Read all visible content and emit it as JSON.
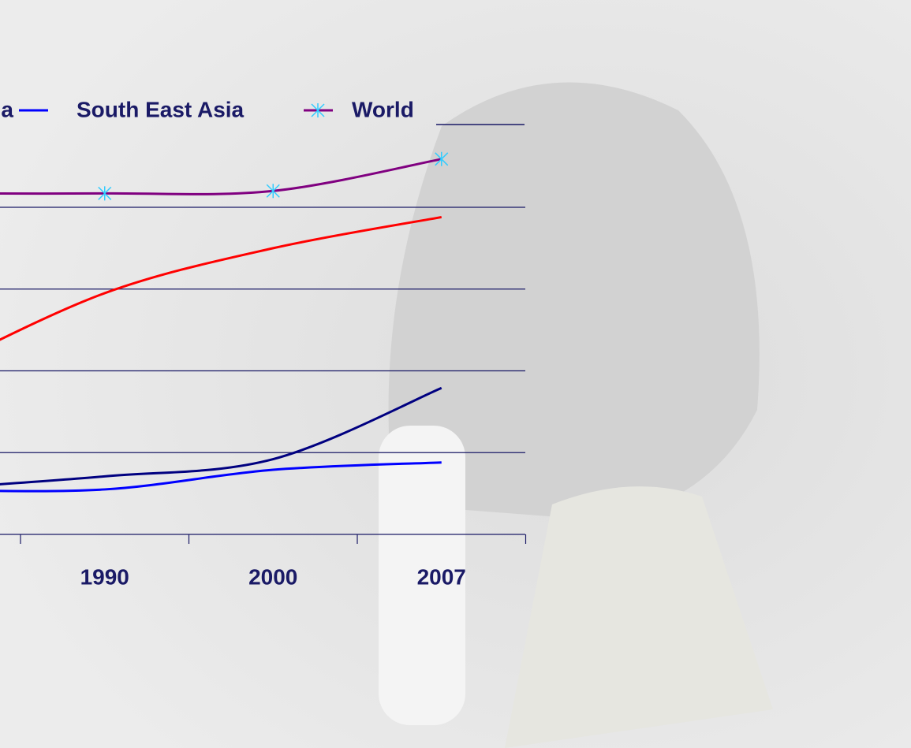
{
  "chart_data": {
    "type": "line",
    "categories": [
      null,
      "1990",
      "2000",
      "2007"
    ],
    "series": [
      {
        "color": "#ff0000",
        "values": [
          2.0,
          2.95,
          3.5,
          3.88
        ]
      },
      {
        "name": "ia",
        "color": "#000080",
        "values": [
          0.56,
          0.71,
          0.92,
          1.79
        ]
      },
      {
        "name": "South East Asia",
        "color": "#0000ff",
        "values": [
          0.54,
          0.55,
          0.79,
          0.88
        ]
      },
      {
        "name": "World",
        "color": "#800080",
        "marker": "x",
        "marker_color": "#33ccff",
        "values": [
          4.17,
          4.17,
          4.2,
          4.59
        ]
      }
    ],
    "ylim": [
      0,
      5
    ],
    "yticks": [
      0,
      1,
      2,
      3,
      4
    ],
    "grid": true,
    "smooth": true
  }
}
